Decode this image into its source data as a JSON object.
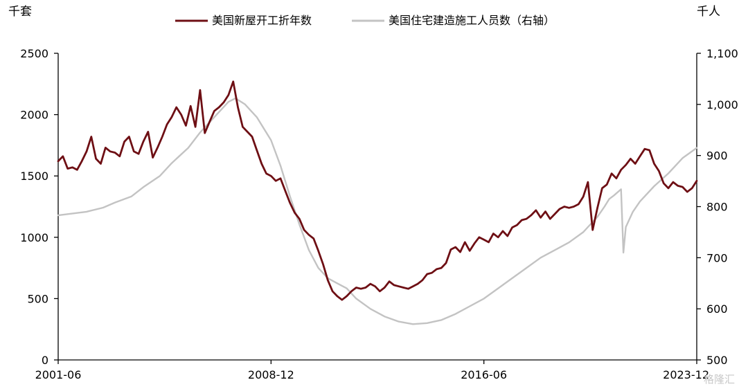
{
  "chart_data": {
    "type": "line",
    "left_unit": "千套",
    "right_unit": "千人",
    "x_tick_labels": [
      "2001-06",
      "2008-12",
      "2016-06",
      "2023-12"
    ],
    "x_range": [
      "2001-06",
      "2023-12"
    ],
    "y_left": {
      "ticks": [
        0,
        500,
        1000,
        1500,
        2000,
        2500
      ],
      "labels": [
        "0",
        "500",
        "1000",
        "1500",
        "2000",
        "2500"
      ],
      "range": [
        0,
        2500
      ]
    },
    "y_right": {
      "ticks": [
        500,
        600,
        700,
        800,
        900,
        1000,
        1100
      ],
      "labels": [
        "500",
        "600",
        "700",
        "800",
        "900",
        "1,000",
        "1,100"
      ],
      "range": [
        500,
        1100
      ]
    },
    "series": [
      {
        "name": "美国新屋开工折年数",
        "axis": "left",
        "color": "#6e0f14",
        "points": [
          [
            "2001-06",
            1620
          ],
          [
            "2001-08",
            1660
          ],
          [
            "2001-10",
            1560
          ],
          [
            "2001-12",
            1570
          ],
          [
            "2002-02",
            1550
          ],
          [
            "2002-04",
            1620
          ],
          [
            "2002-06",
            1700
          ],
          [
            "2002-08",
            1820
          ],
          [
            "2002-10",
            1640
          ],
          [
            "2002-12",
            1600
          ],
          [
            "2003-02",
            1730
          ],
          [
            "2003-04",
            1700
          ],
          [
            "2003-06",
            1690
          ],
          [
            "2003-08",
            1660
          ],
          [
            "2003-10",
            1780
          ],
          [
            "2003-12",
            1820
          ],
          [
            "2004-02",
            1700
          ],
          [
            "2004-04",
            1680
          ],
          [
            "2004-06",
            1780
          ],
          [
            "2004-08",
            1860
          ],
          [
            "2004-10",
            1650
          ],
          [
            "2004-12",
            1730
          ],
          [
            "2005-02",
            1820
          ],
          [
            "2005-04",
            1920
          ],
          [
            "2005-06",
            1980
          ],
          [
            "2005-08",
            2060
          ],
          [
            "2005-10",
            2000
          ],
          [
            "2005-12",
            1910
          ],
          [
            "2006-02",
            2070
          ],
          [
            "2006-04",
            1900
          ],
          [
            "2006-06",
            2200
          ],
          [
            "2006-08",
            1850
          ],
          [
            "2006-10",
            1940
          ],
          [
            "2006-12",
            2030
          ],
          [
            "2007-02",
            2060
          ],
          [
            "2007-04",
            2100
          ],
          [
            "2007-06",
            2160
          ],
          [
            "2007-08",
            2270
          ],
          [
            "2007-10",
            2060
          ],
          [
            "2007-12",
            1900
          ],
          [
            "2008-02",
            1860
          ],
          [
            "2008-04",
            1820
          ],
          [
            "2008-06",
            1710
          ],
          [
            "2008-08",
            1600
          ],
          [
            "2008-10",
            1520
          ],
          [
            "2008-12",
            1500
          ],
          [
            "2009-02",
            1460
          ],
          [
            "2009-04",
            1480
          ],
          [
            "2009-06",
            1380
          ],
          [
            "2009-08",
            1280
          ],
          [
            "2009-10",
            1200
          ],
          [
            "2009-12",
            1150
          ],
          [
            "2010-02",
            1060
          ],
          [
            "2010-04",
            1020
          ],
          [
            "2010-06",
            990
          ],
          [
            "2010-08",
            890
          ],
          [
            "2010-10",
            780
          ],
          [
            "2010-12",
            650
          ],
          [
            "2011-02",
            560
          ],
          [
            "2011-04",
            520
          ],
          [
            "2011-06",
            490
          ],
          [
            "2011-08",
            520
          ],
          [
            "2011-10",
            560
          ],
          [
            "2011-12",
            590
          ],
          [
            "2012-02",
            580
          ],
          [
            "2012-04",
            590
          ],
          [
            "2012-06",
            620
          ],
          [
            "2012-08",
            600
          ],
          [
            "2012-10",
            560
          ],
          [
            "2012-12",
            590
          ],
          [
            "2013-02",
            640
          ],
          [
            "2013-04",
            610
          ],
          [
            "2013-06",
            600
          ],
          [
            "2013-08",
            590
          ],
          [
            "2013-10",
            580
          ],
          [
            "2013-12",
            600
          ],
          [
            "2014-02",
            620
          ],
          [
            "2014-04",
            650
          ],
          [
            "2014-06",
            700
          ],
          [
            "2014-08",
            710
          ],
          [
            "2014-10",
            740
          ],
          [
            "2014-12",
            750
          ],
          [
            "2015-02",
            790
          ],
          [
            "2015-04",
            900
          ],
          [
            "2015-06",
            920
          ],
          [
            "2015-08",
            880
          ],
          [
            "2015-10",
            960
          ],
          [
            "2015-12",
            890
          ],
          [
            "2016-02",
            950
          ],
          [
            "2016-04",
            1000
          ],
          [
            "2016-06",
            980
          ],
          [
            "2016-08",
            960
          ],
          [
            "2016-10",
            1030
          ],
          [
            "2016-12",
            1000
          ],
          [
            "2017-02",
            1050
          ],
          [
            "2017-04",
            1010
          ],
          [
            "2017-06",
            1080
          ],
          [
            "2017-08",
            1100
          ],
          [
            "2017-10",
            1140
          ],
          [
            "2017-12",
            1150
          ],
          [
            "2018-02",
            1180
          ],
          [
            "2018-04",
            1220
          ],
          [
            "2018-06",
            1160
          ],
          [
            "2018-08",
            1210
          ],
          [
            "2018-10",
            1150
          ],
          [
            "2018-12",
            1190
          ],
          [
            "2019-02",
            1230
          ],
          [
            "2019-04",
            1250
          ],
          [
            "2019-06",
            1240
          ],
          [
            "2019-08",
            1250
          ],
          [
            "2019-10",
            1270
          ],
          [
            "2019-12",
            1330
          ],
          [
            "2020-02",
            1450
          ],
          [
            "2020-04",
            1060
          ],
          [
            "2020-06",
            1240
          ],
          [
            "2020-08",
            1400
          ],
          [
            "2020-10",
            1430
          ],
          [
            "2020-12",
            1520
          ],
          [
            "2021-02",
            1480
          ],
          [
            "2021-04",
            1550
          ],
          [
            "2021-06",
            1590
          ],
          [
            "2021-08",
            1640
          ],
          [
            "2021-10",
            1600
          ],
          [
            "2021-12",
            1660
          ],
          [
            "2022-02",
            1720
          ],
          [
            "2022-04",
            1710
          ],
          [
            "2022-06",
            1600
          ],
          [
            "2022-08",
            1540
          ],
          [
            "2022-10",
            1440
          ],
          [
            "2022-12",
            1400
          ],
          [
            "2023-02",
            1450
          ],
          [
            "2023-04",
            1420
          ],
          [
            "2023-06",
            1410
          ],
          [
            "2023-08",
            1370
          ],
          [
            "2023-10",
            1400
          ],
          [
            "2023-12",
            1460
          ]
        ]
      },
      {
        "name": "美国住宅建造施工人员数（右轴）",
        "axis": "right",
        "color": "#c3c3c3",
        "points": [
          [
            "2001-06",
            783
          ],
          [
            "2002-01",
            787
          ],
          [
            "2002-06",
            790
          ],
          [
            "2003-01",
            798
          ],
          [
            "2003-06",
            808
          ],
          [
            "2004-01",
            820
          ],
          [
            "2004-06",
            838
          ],
          [
            "2005-01",
            860
          ],
          [
            "2005-06",
            885
          ],
          [
            "2006-01",
            915
          ],
          [
            "2006-06",
            945
          ],
          [
            "2007-01",
            980
          ],
          [
            "2007-06",
            1005
          ],
          [
            "2007-09",
            1012
          ],
          [
            "2008-01",
            1000
          ],
          [
            "2008-06",
            975
          ],
          [
            "2008-12",
            930
          ],
          [
            "2009-04",
            880
          ],
          [
            "2009-08",
            820
          ],
          [
            "2009-12",
            765
          ],
          [
            "2010-04",
            715
          ],
          [
            "2010-08",
            680
          ],
          [
            "2010-12",
            660
          ],
          [
            "2011-04",
            650
          ],
          [
            "2011-08",
            640
          ],
          [
            "2011-12",
            620
          ],
          [
            "2012-06",
            600
          ],
          [
            "2012-12",
            585
          ],
          [
            "2013-06",
            575
          ],
          [
            "2013-12",
            570
          ],
          [
            "2014-06",
            572
          ],
          [
            "2014-12",
            578
          ],
          [
            "2015-06",
            590
          ],
          [
            "2015-12",
            605
          ],
          [
            "2016-06",
            620
          ],
          [
            "2016-12",
            640
          ],
          [
            "2017-06",
            660
          ],
          [
            "2017-12",
            680
          ],
          [
            "2018-06",
            700
          ],
          [
            "2018-12",
            715
          ],
          [
            "2019-06",
            730
          ],
          [
            "2019-12",
            750
          ],
          [
            "2020-02",
            760
          ],
          [
            "2020-06",
            780
          ],
          [
            "2020-09",
            800
          ],
          [
            "2020-11",
            815
          ],
          [
            "2021-01",
            822
          ],
          [
            "2021-03",
            830
          ],
          [
            "2021-04",
            834
          ],
          [
            "2021-05",
            710
          ],
          [
            "2021-06",
            760
          ],
          [
            "2021-09",
            790
          ],
          [
            "2021-12",
            810
          ],
          [
            "2022-06",
            840
          ],
          [
            "2022-12",
            865
          ],
          [
            "2023-06",
            895
          ],
          [
            "2023-09",
            905
          ],
          [
            "2023-12",
            915
          ]
        ]
      }
    ],
    "legend_position": "top-center",
    "grid": false
  },
  "watermark": "格隆汇"
}
